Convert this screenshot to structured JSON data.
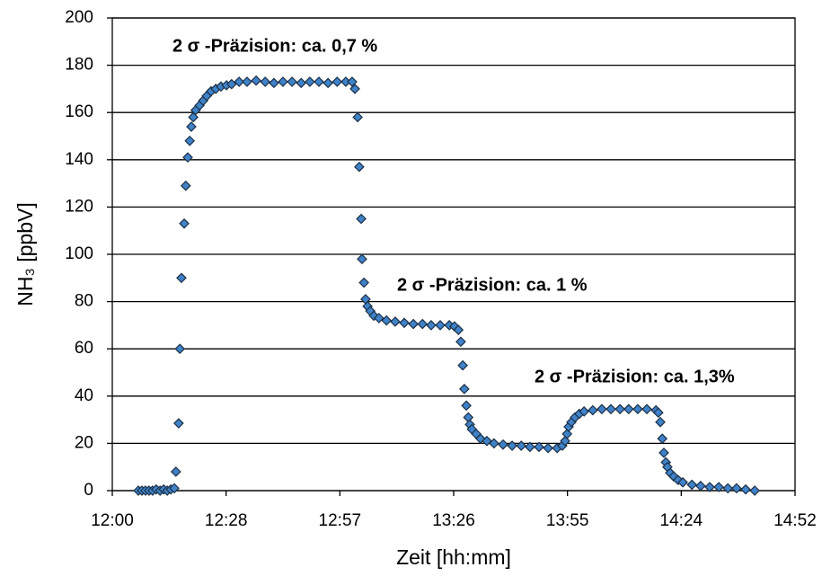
{
  "chart_data": {
    "type": "scatter",
    "xlabel": "Zeit [hh:mm]",
    "ylabel": "NH₃ [ppbV]",
    "annotations": [
      "2 σ -Präzision: ca. 0,7 %",
      "2 σ -Präzision: ca. 1 %",
      "2 σ -Präzision: ca. 1,3%"
    ],
    "color": "#3f82c8",
    "xlim": [
      720,
      892.8
    ],
    "ylim": [
      0,
      200
    ],
    "xticks": [
      {
        "value": 720,
        "label": "12:00"
      },
      {
        "value": 748.8,
        "label": "12:28"
      },
      {
        "value": 777.6,
        "label": "12:57"
      },
      {
        "value": 806.4,
        "label": "13:26"
      },
      {
        "value": 835.2,
        "label": "13:55"
      },
      {
        "value": 864,
        "label": "14:24"
      },
      {
        "value": 892.8,
        "label": "14:52"
      }
    ],
    "yticks": [
      0,
      20,
      40,
      60,
      80,
      100,
      120,
      140,
      160,
      180,
      200
    ],
    "grid": true,
    "x": [
      726.6,
      727.5,
      728.4,
      729.3,
      730.2,
      731.1,
      732.1,
      733.0,
      733.9,
      734.8,
      735.7,
      736.1,
      736.8,
      737.1,
      737.5,
      738.2,
      738.6,
      739.1,
      739.6,
      740.0,
      740.5,
      741.1,
      742.1,
      743.0,
      743.9,
      745.0,
      746.2,
      747.5,
      748.9,
      750.2,
      752.1,
      754.1,
      756.4,
      758.7,
      760.9,
      763.2,
      765.5,
      767.8,
      770.0,
      772.3,
      774.6,
      776.9,
      779.1,
      780.7,
      781.4,
      782.1,
      782.5,
      783.0,
      783.2,
      783.7,
      784.1,
      784.6,
      785.3,
      786.2,
      787.5,
      789.4,
      791.6,
      793.9,
      796.2,
      798.5,
      800.7,
      803.0,
      805.3,
      806.6,
      807.6,
      808.2,
      808.7,
      809.1,
      809.6,
      810.1,
      810.5,
      811.0,
      812.1,
      813.2,
      814.8,
      816.6,
      818.9,
      821.2,
      823.5,
      825.7,
      828.0,
      830.3,
      832.6,
      833.9,
      834.6,
      835.1,
      835.5,
      836.2,
      837.1,
      838.2,
      839.4,
      841.6,
      843.9,
      846.2,
      848.5,
      850.7,
      853.0,
      855.3,
      857.6,
      858.2,
      858.7,
      859.2,
      859.6,
      860.1,
      860.5,
      861.2,
      862.1,
      863.2,
      864.4,
      866.7,
      868.9,
      871.2,
      873.5,
      875.8,
      878.0,
      880.3,
      882.6
    ],
    "values": [
      0,
      0,
      0,
      0,
      0,
      0.5,
      0,
      0.5,
      0,
      0.5,
      1,
      8,
      28.5,
      60,
      90,
      113,
      129,
      141,
      148,
      154,
      158,
      161,
      163,
      165,
      167,
      169,
      170,
      171,
      171.5,
      172,
      173,
      173,
      173.5,
      173,
      172.5,
      173,
      173,
      172.5,
      173,
      173,
      172.5,
      173,
      173,
      173,
      170,
      158,
      137,
      115,
      98,
      88,
      81,
      78,
      76,
      74,
      73,
      72,
      71.5,
      71,
      70.5,
      70.5,
      70,
      70,
      70,
      69.5,
      68,
      63,
      53,
      43,
      36,
      31,
      28,
      26,
      24,
      22,
      21,
      20,
      19.5,
      19,
      19,
      18.5,
      18.5,
      18,
      18,
      19,
      21,
      24,
      27,
      29,
      31,
      32.5,
      33.5,
      34,
      34.5,
      34.5,
      34.5,
      34.5,
      34.5,
      34.5,
      34,
      33,
      29,
      22,
      16,
      12,
      10,
      7.5,
      6,
      4.5,
      3.5,
      2.5,
      2,
      1.5,
      1.5,
      1,
      1,
      0.5,
      0
    ]
  }
}
